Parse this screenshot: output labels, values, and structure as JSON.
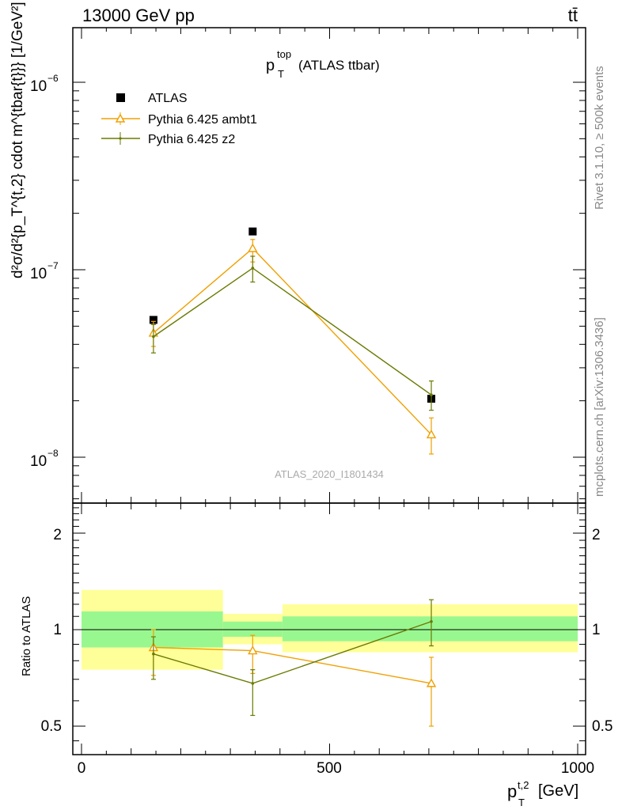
{
  "header": {
    "left": "13000 GeV pp",
    "right": "tt̄"
  },
  "plot_title": {
    "main": "p",
    "sup": "top",
    "sub": "T",
    "rest": "(ATLAS ttbar)"
  },
  "analysis_id": "ATLAS_2020_I1801434",
  "side_labels": {
    "rivet": "Rivet 3.1.10, ≥ 500k events",
    "mcplots": "mcplots.cern.ch [arXiv:1306.3436]"
  },
  "axes": {
    "x_label": "p",
    "x_label_sup": "t,2",
    "x_label_sub": "T",
    "x_label_unit": "[GeV]",
    "y_label_main": "d²σ/d²{p_T^{t,2} cdot m^{tbar{t}}} [1/GeV²]",
    "y_label_ratio": "Ratio to ATLAS",
    "x_ticks": [
      "0",
      "500",
      "1000"
    ],
    "y_ticks_main": [
      "10",
      "10",
      "10"
    ],
    "y_ticks_main_exp": [
      "−6",
      "−7",
      "−8"
    ],
    "y_ticks_ratio": [
      "2",
      "1",
      "0.5"
    ]
  },
  "legend": [
    {
      "label": "ATLAS",
      "color": "#000000",
      "marker": "square"
    },
    {
      "label": "Pythia 6.425 ambt1",
      "color": "#f0a000",
      "marker": "open-triangle"
    },
    {
      "label": "Pythia 6.425 z2",
      "color": "#6b7a00",
      "marker": "dot"
    }
  ],
  "chart_data": [
    {
      "type": "line",
      "panel": "main",
      "log_y": true,
      "xlim": [
        -10,
        1000
      ],
      "ylim": [
        6e-09,
        2e-06
      ],
      "series": [
        {
          "name": "ATLAS",
          "x": [
            145,
            345,
            705
          ],
          "y": [
            5.4e-08,
            1.6e-07,
            2.05e-08
          ],
          "xerr": [
            [
              145,
              145
            ],
            [
              55,
              55
            ],
            [
              300,
              300
            ]
          ],
          "color": "#000000"
        },
        {
          "name": "Pythia 6.425 ambt1",
          "x": [
            145,
            345,
            705
          ],
          "y": [
            4.6e-08,
            1.3e-07,
            1.32e-08
          ],
          "yerr_low": [
            3.9e-08,
            1.1e-07,
            1.04e-08
          ],
          "yerr_high": [
            5.3e-08,
            1.45e-07,
            1.62e-08
          ],
          "color": "#f0a000"
        },
        {
          "name": "Pythia 6.425 z2",
          "x": [
            145,
            345,
            705
          ],
          "y": [
            4.4e-08,
            1.02e-07,
            2.15e-08
          ],
          "yerr_low": [
            3.6e-08,
            8.6e-08,
            1.78e-08
          ],
          "yerr_high": [
            5.1e-08,
            1.18e-07,
            2.55e-08
          ],
          "color": "#6b7a00"
        }
      ]
    },
    {
      "type": "line",
      "panel": "ratio",
      "log_y": true,
      "xlim": [
        -10,
        1000
      ],
      "ylim": [
        0.42,
        2.5
      ],
      "bands": [
        {
          "xmin": 0,
          "xmax": 285,
          "yellow": [
            0.75,
            1.33
          ],
          "green": [
            0.88,
            1.14
          ]
        },
        {
          "xmin": 285,
          "xmax": 405,
          "yellow": [
            0.9,
            1.12
          ],
          "green": [
            0.95,
            1.06
          ]
        },
        {
          "xmin": 405,
          "xmax": 1000,
          "yellow": [
            0.85,
            1.2
          ],
          "green": [
            0.92,
            1.1
          ]
        }
      ],
      "series": [
        {
          "name": "Pythia 6.425 ambt1",
          "x": [
            145,
            345,
            705
          ],
          "y": [
            0.88,
            0.86,
            0.68
          ],
          "yerr_low": [
            0.72,
            0.73,
            0.5
          ],
          "yerr_high": [
            1.0,
            0.96,
            0.82
          ],
          "color": "#f0a000"
        },
        {
          "name": "Pythia 6.425 z2",
          "x": [
            145,
            345,
            705
          ],
          "y": [
            0.84,
            0.68,
            1.06
          ],
          "yerr_low": [
            0.7,
            0.54,
            0.89
          ],
          "yerr_high": [
            0.95,
            0.75,
            1.24
          ],
          "color": "#6b7a00"
        }
      ]
    }
  ]
}
